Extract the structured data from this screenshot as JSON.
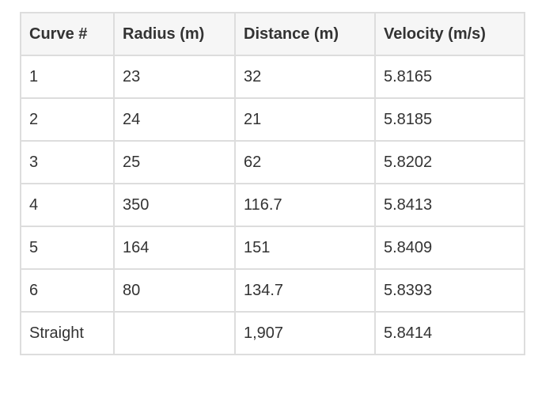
{
  "table": {
    "header": [
      "Curve #",
      "Radius (m)",
      "Distance (m)",
      "Velocity (m/s)"
    ],
    "rows": [
      [
        "1",
        "23",
        "32",
        "5.8165"
      ],
      [
        "2",
        "24",
        "21",
        "5.8185"
      ],
      [
        "3",
        "25",
        "62",
        "5.8202"
      ],
      [
        "4",
        "350",
        "116.7",
        "5.8413"
      ],
      [
        "5",
        "164",
        "151",
        "5.8409"
      ],
      [
        "6",
        "80",
        "134.7",
        "5.8393"
      ],
      [
        "Straight",
        null,
        "1,907",
        "5.8414"
      ]
    ]
  }
}
